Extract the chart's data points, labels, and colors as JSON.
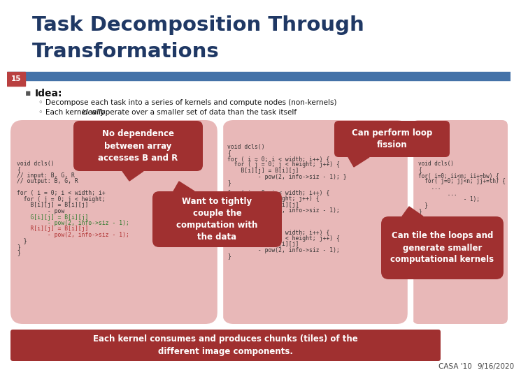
{
  "title_line1": "Task Decomposition Through",
  "title_line2": "Transformations",
  "title_color": "#1f3864",
  "slide_number": "15",
  "slide_num_bg": "#b94040",
  "header_bar_color": "#4472a8",
  "bullet_main": "Idea:",
  "bullet_sub1": "Decompose each task into a series of kernels and compute nodes (non-kernels)",
  "bullet_sub2_pre": "Each kernel will ",
  "bullet_sub2_italic": "ideally",
  "bullet_sub2_post": " operate over a smaller set of data than the task itself",
  "code_bg": "#e8b8b8",
  "tooltip_bg": "#a03030",
  "bottom_bar_bg": "#a03030",
  "footer_left": "CASA '10",
  "footer_right": "9/16/2020",
  "footer_color": "#444444",
  "bg_color": "#ffffff",
  "white_gap_color": "#e8d0d0"
}
